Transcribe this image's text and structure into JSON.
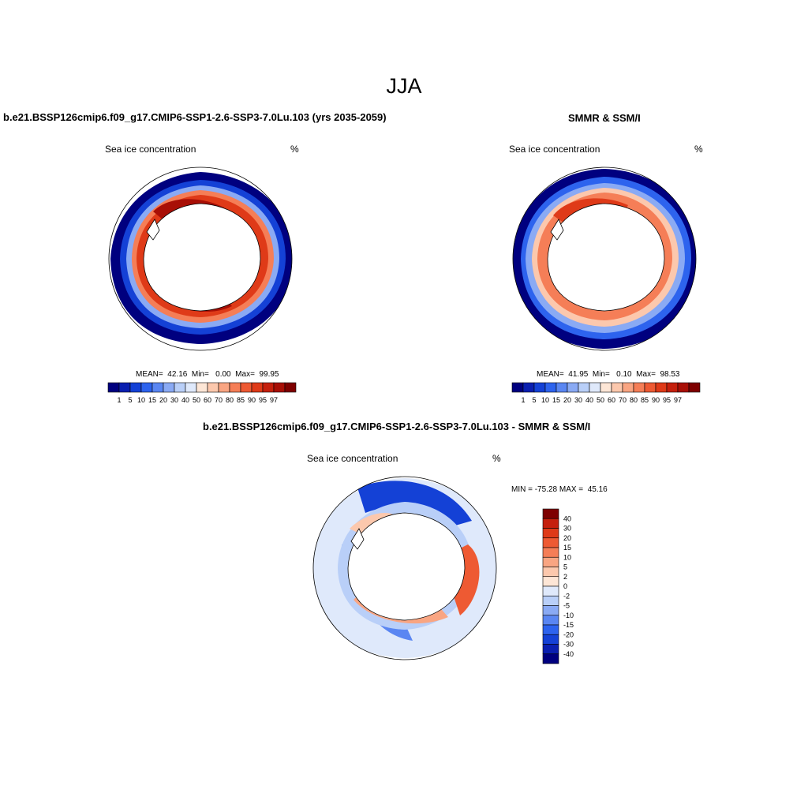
{
  "season": "JJA",
  "colors": {
    "ice_scale": [
      "#00007f",
      "#0a1fb0",
      "#1441d6",
      "#2d63ee",
      "#5a86f2",
      "#8aaaf4",
      "#b9cff8",
      "#dfe9fb",
      "#fde6d6",
      "#fcc8ad",
      "#f9a582",
      "#f57e57",
      "#ee5a33",
      "#df3a18",
      "#c5200d",
      "#a80f06",
      "#7e0000"
    ],
    "diff_scale": [
      "#00007f",
      "#0a1fb0",
      "#1441d6",
      "#2d63ee",
      "#5a86f2",
      "#8aaaf4",
      "#b9cff8",
      "#dfe9fb",
      "#fde6d6",
      "#fcc8ad",
      "#f9a582",
      "#f57e57",
      "#ee5a33",
      "#df3a18",
      "#c5200d",
      "#7e0000"
    ]
  },
  "panels": {
    "model": {
      "title": "b.e21.BSSP126cmip6.f09_g17.CMIP6-SSP1-2.6-SSP3-7.0Lu.103 (yrs 2035-2059)",
      "variable": "Sea ice concentration",
      "units": "%",
      "stats": "MEAN=  42.16  Min=   0.00  Max=  99.95",
      "colorbar_ticks": [
        "1",
        "5",
        "10",
        "15",
        "20",
        "30",
        "40",
        "50",
        "60",
        "70",
        "80",
        "85",
        "90",
        "95",
        "97"
      ]
    },
    "obs": {
      "title": "SMMR & SSM/I",
      "variable": "Sea ice concentration",
      "units": "%",
      "stats": "MEAN=  41.95  Min=   0.10  Max=  98.53",
      "colorbar_ticks": [
        "1",
        "5",
        "10",
        "15",
        "20",
        "30",
        "40",
        "50",
        "60",
        "70",
        "80",
        "85",
        "90",
        "95",
        "97"
      ]
    },
    "diff": {
      "title": "b.e21.BSSP126cmip6.f09_g17.CMIP6-SSP1-2.6-SSP3-7.0Lu.103 - SMMR & SSM/I",
      "variable": "Sea ice concentration",
      "units": "%",
      "stats": "MIN = -75.28 MAX =  45.16",
      "colorbar_ticks": [
        "40",
        "30",
        "20",
        "15",
        "10",
        "5",
        "2",
        "0",
        "-2",
        "-5",
        "-10",
        "-15",
        "-20",
        "-30",
        "-40"
      ]
    }
  }
}
